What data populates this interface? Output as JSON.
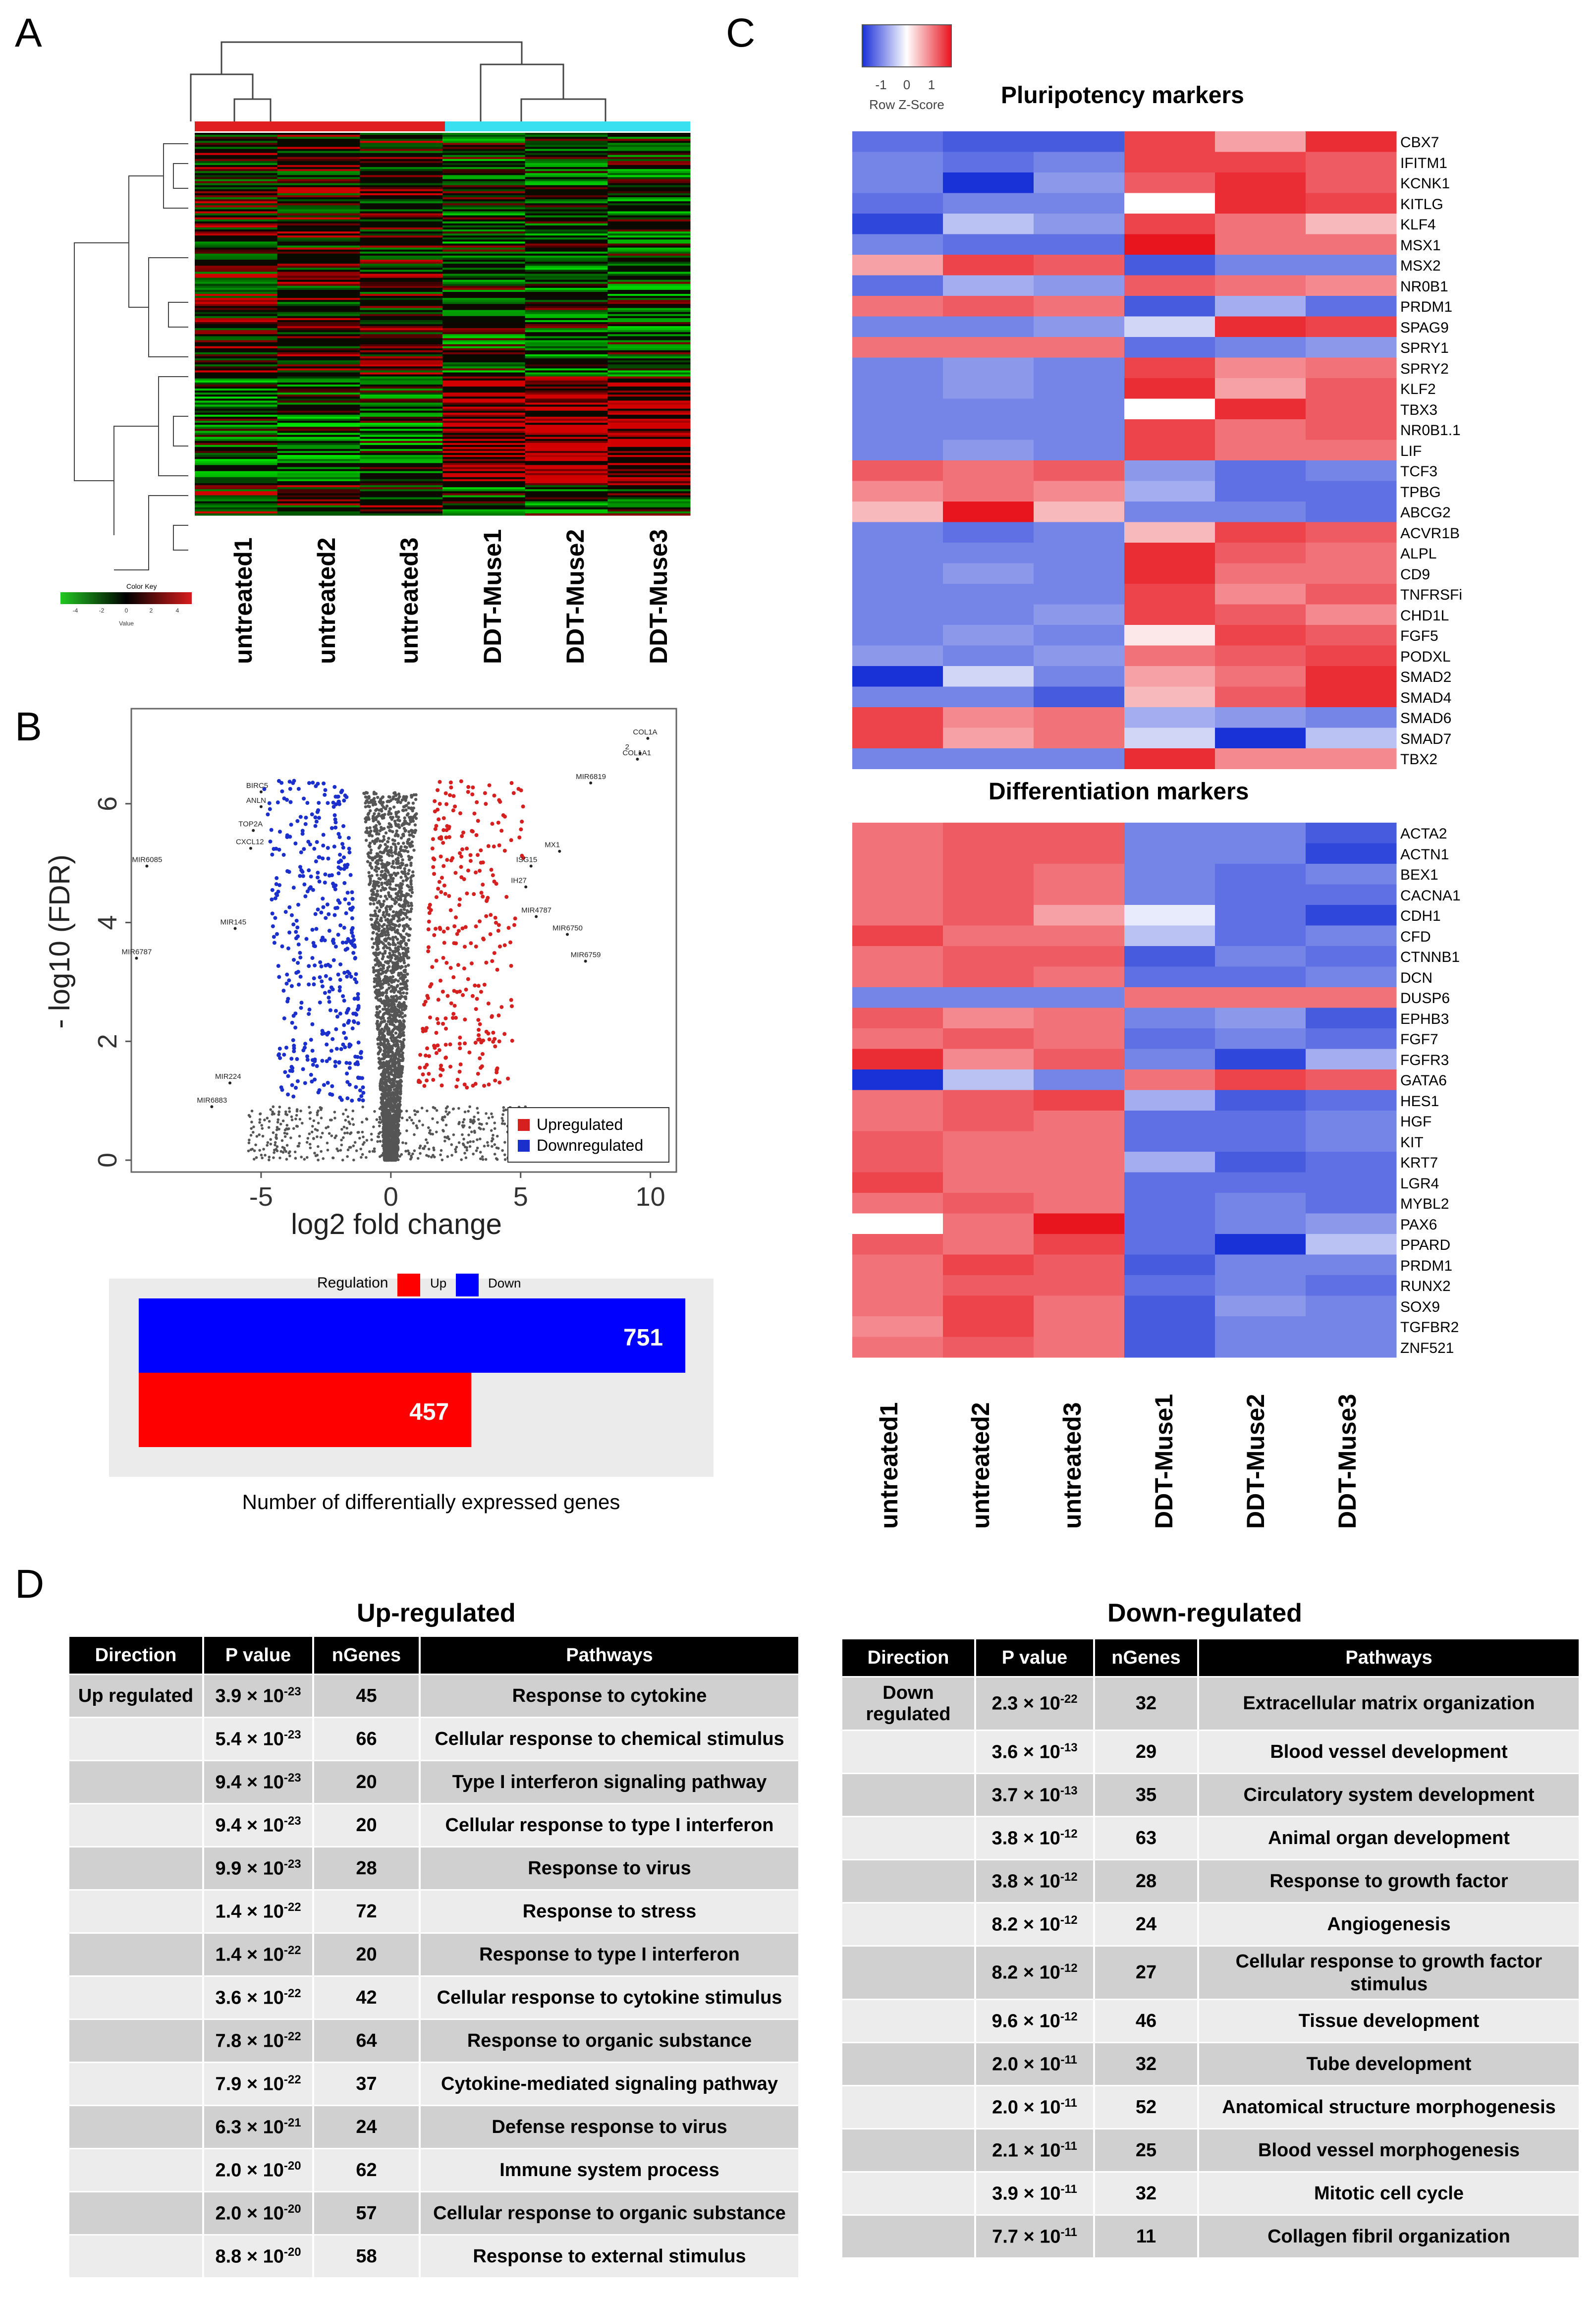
{
  "panels": {
    "a": "A",
    "b": "B",
    "c": "C",
    "d": "D"
  },
  "panel_a": {
    "samples": [
      "untreated1",
      "untreated2",
      "untreated3",
      "DDT-Muse1",
      "DDT-Muse2",
      "DDT-Muse3"
    ],
    "color_key_title": "Color Key",
    "color_key_ticks": [
      "-4",
      "-2",
      "0",
      "2",
      "4"
    ],
    "color_key_axis": "Value",
    "colors": {
      "low": "#22c922",
      "mid": "#000000",
      "high": "#d81c1c",
      "group1": "#e02020",
      "group2": "#38e0f0"
    }
  },
  "panel_b": {
    "volcano": {
      "chart_data": {
        "type": "scatter",
        "xlabel": "log2 fold change",
        "ylabel": "- log10 (FDR)",
        "xticks": [
          "-5",
          "0",
          "5",
          "10"
        ],
        "yticks": [
          "0",
          "2",
          "4",
          "6"
        ],
        "xlim": [
          -10,
          11
        ],
        "ylim": [
          -0.2,
          7.6
        ],
        "legend": [
          {
            "name": "Upregulated",
            "color": "#d62020"
          },
          {
            "name": "Downregulated",
            "color": "#1a2fcc"
          }
        ],
        "legend_position": "bottom-right",
        "labeled_genes": [
          {
            "name": "COL1A",
            "x": 9.9,
            "y": 7.1
          },
          {
            "name": "2",
            "x": 9.6,
            "y": 6.85
          },
          {
            "name": "COL1A1",
            "x": 9.5,
            "y": 6.75
          },
          {
            "name": "MIR6819",
            "x": 7.7,
            "y": 6.35
          },
          {
            "name": "MX1",
            "x": 6.5,
            "y": 5.2
          },
          {
            "name": "ISG15",
            "x": 5.4,
            "y": 4.95
          },
          {
            "name": "IH27",
            "x": 5.2,
            "y": 4.6
          },
          {
            "name": "MIR4787",
            "x": 5.6,
            "y": 4.1
          },
          {
            "name": "MIR6750",
            "x": 6.8,
            "y": 3.8
          },
          {
            "name": "MIR6759",
            "x": 7.5,
            "y": 3.35
          },
          {
            "name": "BIRC5",
            "x": -5.0,
            "y": 6.2
          },
          {
            "name": "ANLN",
            "x": -5.0,
            "y": 5.95
          },
          {
            "name": "TOP2A",
            "x": -5.3,
            "y": 5.55
          },
          {
            "name": "CXCL12",
            "x": -5.4,
            "y": 5.25
          },
          {
            "name": "MIR6085",
            "x": -9.4,
            "y": 4.95
          },
          {
            "name": "MIR145",
            "x": -6.0,
            "y": 3.9
          },
          {
            "name": "MIR6787",
            "x": -9.8,
            "y": 3.4
          },
          {
            "name": "MIR224",
            "x": -6.2,
            "y": 1.3
          },
          {
            "name": "MIR6883",
            "x": -6.9,
            "y": 0.9
          }
        ]
      }
    },
    "bar": {
      "chart_data": {
        "type": "bar",
        "orientation": "horizontal",
        "legend_title": "Regulation",
        "series": [
          {
            "name": "Up",
            "color": "#ff0000",
            "value": 457
          },
          {
            "name": "Down",
            "color": "#0000ff",
            "value": 751
          }
        ],
        "xlabel": "Number of differentially expressed genes",
        "xlim": [
          0,
          800
        ]
      }
    }
  },
  "panel_c": {
    "key_title": "Row Z-Score",
    "key_ticks": [
      "-1",
      "0",
      "1"
    ],
    "samples": [
      "untreated1",
      "untreated2",
      "untreated3",
      "DDT-Muse1",
      "DDT-Muse2",
      "DDT-Muse3"
    ],
    "pluri": {
      "title": "Pluripotency markers",
      "genes": [
        "CBX7",
        "IFITM1",
        "KCNK1",
        "KITLG",
        "KLF4",
        "MSX1",
        "MSX2",
        "NR0B1",
        "PRDM1",
        "SPAG9",
        "SPRY1",
        "SPRY2",
        "KLF2",
        "TBX3",
        "NR0B1.1",
        "LIF",
        "TCF3",
        "TPBG",
        "ABCG2",
        "ACVR1B",
        "ALPL",
        "CD9",
        "TNFRSFi",
        "CHD1L",
        "FGF5",
        "PODXL",
        "SMAD2",
        "SMAD4",
        "SMAD6",
        "SMAD7",
        "TBX2"
      ],
      "values": [
        [
          -0.7,
          -0.8,
          -0.8,
          0.8,
          0.4,
          0.9
        ],
        [
          -0.6,
          -0.7,
          -0.6,
          0.8,
          0.8,
          0.7
        ],
        [
          -0.6,
          -1.0,
          -0.5,
          0.7,
          0.9,
          0.7
        ],
        [
          -0.7,
          -0.6,
          -0.6,
          0.0,
          0.9,
          0.8
        ],
        [
          -0.9,
          -0.3,
          -0.5,
          0.8,
          0.6,
          0.3
        ],
        [
          -0.6,
          -0.7,
          -0.7,
          1.0,
          0.6,
          0.6
        ],
        [
          0.4,
          0.8,
          0.7,
          -0.8,
          -0.6,
          -0.6
        ],
        [
          -0.7,
          -0.4,
          -0.5,
          0.7,
          0.6,
          0.5
        ],
        [
          0.6,
          0.7,
          0.6,
          -0.8,
          -0.4,
          -0.7
        ],
        [
          -0.6,
          -0.6,
          -0.5,
          -0.2,
          0.9,
          0.8
        ],
        [
          0.6,
          0.6,
          0.6,
          -0.7,
          -0.6,
          -0.5
        ],
        [
          -0.6,
          -0.5,
          -0.6,
          0.8,
          0.5,
          0.6
        ],
        [
          -0.6,
          -0.5,
          -0.6,
          0.9,
          0.4,
          0.7
        ],
        [
          -0.6,
          -0.6,
          -0.6,
          0.0,
          0.9,
          0.7
        ],
        [
          -0.6,
          -0.6,
          -0.6,
          0.8,
          0.6,
          0.7
        ],
        [
          -0.6,
          -0.5,
          -0.6,
          0.8,
          0.6,
          0.6
        ],
        [
          0.7,
          0.6,
          0.7,
          -0.5,
          -0.7,
          -0.6
        ],
        [
          0.5,
          0.6,
          0.5,
          -0.4,
          -0.7,
          -0.7
        ],
        [
          0.3,
          1.0,
          0.3,
          -0.6,
          -0.6,
          -0.7
        ],
        [
          -0.6,
          -0.7,
          -0.6,
          0.3,
          0.8,
          0.7
        ],
        [
          -0.6,
          -0.6,
          -0.6,
          0.9,
          0.7,
          0.6
        ],
        [
          -0.6,
          -0.5,
          -0.6,
          0.9,
          0.6,
          0.6
        ],
        [
          -0.6,
          -0.6,
          -0.6,
          0.8,
          0.5,
          0.7
        ],
        [
          -0.6,
          -0.6,
          -0.5,
          0.8,
          0.7,
          0.5
        ],
        [
          -0.6,
          -0.5,
          -0.6,
          0.1,
          0.8,
          0.7
        ],
        [
          -0.5,
          -0.6,
          -0.5,
          0.6,
          0.7,
          0.8
        ],
        [
          -1.0,
          -0.2,
          -0.6,
          0.4,
          0.6,
          0.9
        ],
        [
          -0.6,
          -0.6,
          -0.8,
          0.3,
          0.7,
          0.9
        ],
        [
          0.8,
          0.5,
          0.6,
          -0.4,
          -0.5,
          -0.6
        ],
        [
          0.8,
          0.4,
          0.6,
          -0.2,
          -1.0,
          -0.3
        ],
        [
          -0.6,
          -0.6,
          -0.6,
          0.9,
          0.5,
          0.5
        ]
      ]
    },
    "diff": {
      "title": "Differentiation markers",
      "genes": [
        "ACTA2",
        "ACTN1",
        "BEX1",
        "CACNA1",
        "CDH1",
        "CFD",
        "CTNNB1",
        "DCN",
        "DUSP6",
        "EPHB3",
        "FGF7",
        "FGFR3",
        "GATA6",
        "HES1",
        "HGF",
        "KIT",
        "KRT7",
        "LGR4",
        "MYBL2",
        "PAX6",
        "PPARD",
        "PRDM1",
        "RUNX2",
        "SOX9",
        "TGFBR2",
        "ZNF521"
      ],
      "values": [
        [
          0.6,
          0.7,
          0.7,
          -0.6,
          -0.6,
          -0.8
        ],
        [
          0.6,
          0.7,
          0.7,
          -0.6,
          -0.6,
          -0.9
        ],
        [
          0.6,
          0.7,
          0.6,
          -0.6,
          -0.7,
          -0.6
        ],
        [
          0.6,
          0.7,
          0.6,
          -0.6,
          -0.7,
          -0.7
        ],
        [
          0.6,
          0.7,
          0.4,
          -0.1,
          -0.7,
          -0.9
        ],
        [
          0.8,
          0.6,
          0.6,
          -0.3,
          -0.7,
          -0.6
        ],
        [
          0.6,
          0.7,
          0.7,
          -0.8,
          -0.6,
          -0.7
        ],
        [
          0.6,
          0.7,
          0.6,
          -0.7,
          -0.7,
          -0.6
        ],
        [
          -0.6,
          -0.6,
          -0.6,
          0.6,
          0.6,
          0.6
        ],
        [
          0.7,
          0.5,
          0.6,
          -0.6,
          -0.5,
          -0.8
        ],
        [
          0.6,
          0.7,
          0.6,
          -0.7,
          -0.6,
          -0.7
        ],
        [
          0.9,
          0.5,
          0.7,
          -0.6,
          -0.9,
          -0.4
        ],
        [
          -1.0,
          -0.3,
          -0.6,
          0.6,
          0.8,
          0.7
        ],
        [
          0.6,
          0.7,
          0.8,
          -0.4,
          -0.8,
          -0.7
        ],
        [
          0.6,
          0.7,
          0.6,
          -0.7,
          -0.7,
          -0.6
        ],
        [
          0.7,
          0.6,
          0.6,
          -0.7,
          -0.7,
          -0.6
        ],
        [
          0.7,
          0.6,
          0.6,
          -0.4,
          -0.8,
          -0.7
        ],
        [
          0.8,
          0.6,
          0.6,
          -0.7,
          -0.7,
          -0.7
        ],
        [
          0.6,
          0.7,
          0.6,
          -0.7,
          -0.6,
          -0.7
        ],
        [
          0.0,
          0.6,
          1.0,
          -0.7,
          -0.6,
          -0.5
        ],
        [
          0.7,
          0.6,
          0.8,
          -0.7,
          -1.0,
          -0.3
        ],
        [
          0.6,
          0.8,
          0.7,
          -0.8,
          -0.6,
          -0.6
        ],
        [
          0.6,
          0.7,
          0.7,
          -0.7,
          -0.6,
          -0.7
        ],
        [
          0.6,
          0.8,
          0.6,
          -0.8,
          -0.5,
          -0.6
        ],
        [
          0.5,
          0.8,
          0.6,
          -0.8,
          -0.6,
          -0.6
        ],
        [
          0.6,
          0.7,
          0.6,
          -0.8,
          -0.6,
          -0.6
        ]
      ]
    }
  },
  "panel_d": {
    "columns": [
      "Direction",
      "P value",
      "nGenes",
      "Pathways"
    ],
    "up": {
      "title": "Up-regulated",
      "direction_label": "Up regulated",
      "rows": [
        {
          "mant": "3.9",
          "exp": "-23",
          "n": "45",
          "path": "Response to cytokine"
        },
        {
          "mant": "5.4",
          "exp": "-23",
          "n": "66",
          "path": "Cellular response to chemical stimulus"
        },
        {
          "mant": "9.4",
          "exp": "-23",
          "n": "20",
          "path": "Type I interferon signaling pathway"
        },
        {
          "mant": "9.4",
          "exp": "-23",
          "n": "20",
          "path": "Cellular response to type I interferon"
        },
        {
          "mant": "9.9",
          "exp": "-23",
          "n": "28",
          "path": "Response to virus"
        },
        {
          "mant": "1.4",
          "exp": "-22",
          "n": "72",
          "path": "Response to stress"
        },
        {
          "mant": "1.4",
          "exp": "-22",
          "n": "20",
          "path": "Response to type I interferon"
        },
        {
          "mant": "3.6",
          "exp": "-22",
          "n": "42",
          "path": "Cellular response to cytokine stimulus"
        },
        {
          "mant": "7.8",
          "exp": "-22",
          "n": "64",
          "path": "Response to organic substance"
        },
        {
          "mant": "7.9",
          "exp": "-22",
          "n": "37",
          "path": "Cytokine-mediated signaling pathway"
        },
        {
          "mant": "6.3",
          "exp": "-21",
          "n": "24",
          "path": "Defense response to virus"
        },
        {
          "mant": "2.0",
          "exp": "-20",
          "n": "62",
          "path": "Immune system process"
        },
        {
          "mant": "2.0",
          "exp": "-20",
          "n": "57",
          "path": "Cellular response to organic substance"
        },
        {
          "mant": "8.8",
          "exp": "-20",
          "n": "58",
          "path": "Response to external stimulus"
        }
      ]
    },
    "down": {
      "title": "Down-regulated",
      "direction_label": "Down regulated",
      "rows": [
        {
          "mant": "2.3",
          "exp": "-22",
          "n": "32",
          "path": "Extracellular matrix organization"
        },
        {
          "mant": "3.6",
          "exp": "-13",
          "n": "29",
          "path": "Blood vessel development"
        },
        {
          "mant": "3.7",
          "exp": "-13",
          "n": "35",
          "path": "Circulatory system development"
        },
        {
          "mant": "3.8",
          "exp": "-12",
          "n": "63",
          "path": "Animal organ development"
        },
        {
          "mant": "3.8",
          "exp": "-12",
          "n": "28",
          "path": "Response to growth factor"
        },
        {
          "mant": "8.2",
          "exp": "-12",
          "n": "24",
          "path": "Angiogenesis"
        },
        {
          "mant": "8.2",
          "exp": "-12",
          "n": "27",
          "path": "Cellular response to growth factor stimulus"
        },
        {
          "mant": "9.6",
          "exp": "-12",
          "n": "46",
          "path": "Tissue development"
        },
        {
          "mant": "2.0",
          "exp": "-11",
          "n": "32",
          "path": "Tube development"
        },
        {
          "mant": "2.0",
          "exp": "-11",
          "n": "52",
          "path": "Anatomical structure morphogenesis"
        },
        {
          "mant": "2.1",
          "exp": "-11",
          "n": "25",
          "path": "Blood vessel morphogenesis"
        },
        {
          "mant": "3.9",
          "exp": "-11",
          "n": "32",
          "path": "Mitotic cell cycle"
        },
        {
          "mant": "7.7",
          "exp": "-11",
          "n": "11",
          "path": "Collagen fibril organization"
        }
      ]
    }
  }
}
